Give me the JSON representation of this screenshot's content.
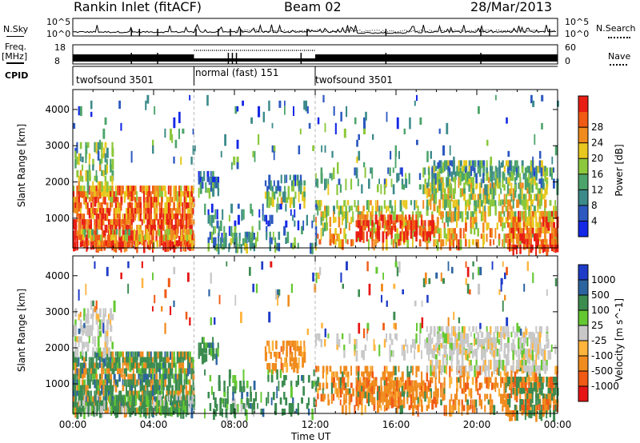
{
  "header": {
    "title": "Rankin Inlet (fitACF)",
    "beam": "Beam 02",
    "date": "28/Mar/2013"
  },
  "panels": {
    "nsky": {
      "label": "N.Sky",
      "y_ticks": [
        "10^5",
        "10^0"
      ],
      "right_ticks": [
        "10^5",
        "10^0"
      ],
      "right_label": "N.Search"
    },
    "freq": {
      "label_line1": "Freq.",
      "label_line2": "[MHz]",
      "y_ticks": [
        "18",
        "8"
      ],
      "right_ticks": [
        "60",
        "0"
      ],
      "right_label": "Nave"
    },
    "cpid": {
      "label": "CPID",
      "segments": [
        {
          "name": "twofsound 3501",
          "start_h": 0,
          "end_h": 6
        },
        {
          "name": "normal (fast) 151",
          "start_h": 6,
          "end_h": 12
        },
        {
          "name": "twofsound 3501",
          "start_h": 12,
          "end_h": 24
        }
      ]
    }
  },
  "colors": {
    "power_scale": [
      "#1428e6",
      "#2c58c0",
      "#3c8a8a",
      "#4ca46a",
      "#8cc83c",
      "#e8c81e",
      "#f08c1e",
      "#f05a14",
      "#e81e14"
    ],
    "velocity_scale": [
      "#e61414",
      "#f05a14",
      "#f08c1e",
      "#ffb43c",
      "#c8c8c8",
      "#64c832",
      "#3c8c50",
      "#2c64a0",
      "#1e3cc8"
    ]
  },
  "chart_data": [
    {
      "type": "heatmap",
      "name_of_panel": "power",
      "ylabel": "Slant Range [km]",
      "ylim": [
        180,
        4550
      ],
      "y_ticks": [
        1000,
        2000,
        3000,
        4000
      ],
      "xlim_hours": [
        0,
        24
      ],
      "colorbar": {
        "label": "Power [dB]",
        "ticks": [
          4,
          8,
          12,
          16,
          20,
          24,
          28
        ],
        "range": [
          0,
          32
        ]
      }
    },
    {
      "type": "heatmap",
      "name_of_panel": "velocity",
      "ylabel": "Slant Range [km]",
      "ylim": [
        180,
        4550
      ],
      "y_ticks": [
        1000,
        2000,
        3000,
        4000
      ],
      "xlim_hours": [
        0,
        24
      ],
      "xlabel": "Time UT",
      "x_ticks": [
        "00:00",
        "04:00",
        "08:00",
        "12:00",
        "16:00",
        "20:00",
        "00:00"
      ],
      "colorbar": {
        "label": "Velocity [m s^-1]",
        "ticks": [
          "1000",
          "500",
          "100",
          "25",
          "-25",
          "-100",
          "-500",
          "-1000"
        ]
      }
    }
  ]
}
